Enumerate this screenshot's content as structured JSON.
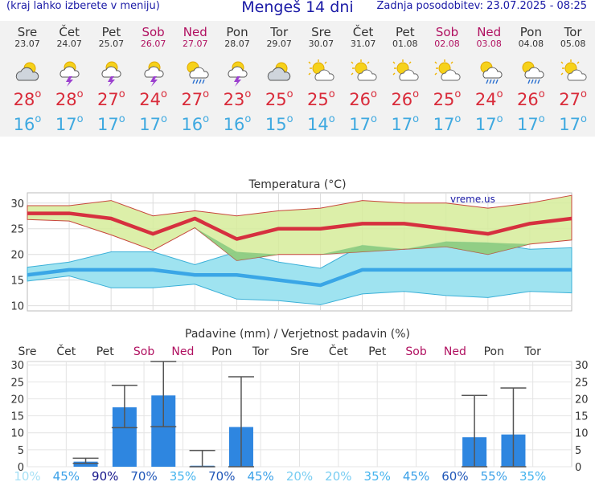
{
  "header": {
    "left_note": "(kraj lahko izberete v meniju)",
    "title": "Mengeš 14 dni",
    "updated": "Zadnja posodobitev: 23.07.2025 - 08:25"
  },
  "days": [
    {
      "name": "Sre",
      "date": "23.07",
      "weekend": false,
      "icon": "partly-cloudy-icon",
      "max": "28",
      "min": "16"
    },
    {
      "name": "Čet",
      "date": "24.07",
      "weekend": false,
      "icon": "thunderstorm-sun-icon",
      "max": "28",
      "min": "17"
    },
    {
      "name": "Pet",
      "date": "25.07",
      "weekend": false,
      "icon": "thunderstorm-sun-icon",
      "max": "27",
      "min": "17"
    },
    {
      "name": "Sob",
      "date": "26.07",
      "weekend": true,
      "icon": "thunderstorm-sun-icon",
      "max": "24",
      "min": "17"
    },
    {
      "name": "Ned",
      "date": "27.07",
      "weekend": true,
      "icon": "rain-sun-icon",
      "max": "27",
      "min": "16"
    },
    {
      "name": "Pon",
      "date": "28.07",
      "weekend": false,
      "icon": "thunderstorm-sun-icon",
      "max": "23",
      "min": "16"
    },
    {
      "name": "Tor",
      "date": "29.07",
      "weekend": false,
      "icon": "partly-cloudy-icon",
      "max": "25",
      "min": "15"
    },
    {
      "name": "Sre",
      "date": "30.07",
      "weekend": false,
      "icon": "mostly-sunny-icon",
      "max": "25",
      "min": "14"
    },
    {
      "name": "Čet",
      "date": "31.07",
      "weekend": false,
      "icon": "mostly-sunny-icon",
      "max": "26",
      "min": "17"
    },
    {
      "name": "Pet",
      "date": "01.08",
      "weekend": false,
      "icon": "mostly-sunny-icon",
      "max": "26",
      "min": "17"
    },
    {
      "name": "Sob",
      "date": "02.08",
      "weekend": true,
      "icon": "mostly-sunny-icon",
      "max": "25",
      "min": "17"
    },
    {
      "name": "Ned",
      "date": "03.08",
      "weekend": true,
      "icon": "rain-sun-icon",
      "max": "24",
      "min": "17"
    },
    {
      "name": "Pon",
      "date": "04.08",
      "weekend": false,
      "icon": "rain-sun-icon",
      "max": "26",
      "min": "17"
    },
    {
      "name": "Tor",
      "date": "05.08",
      "weekend": false,
      "icon": "mostly-sunny-icon",
      "max": "27",
      "min": "17"
    }
  ],
  "colors": {
    "max_line": "#d6303f",
    "min_line": "#3aa6e6",
    "max_band": "#d6ec9a",
    "min_band": "#9fe3f0",
    "overlap_band": "#7cc47a",
    "bar": "#2e86e0",
    "whisker": "#555555",
    "title_blue": "#1a1aa6",
    "weekend": "#b01060"
  },
  "chart_data": [
    {
      "type": "line",
      "title": "Temperatura (°C)",
      "watermark": "vreme.us",
      "ylim": [
        9,
        32
      ],
      "yticks": [
        "10",
        "15",
        "20",
        "25",
        "30"
      ],
      "categories": [
        "23.07",
        "24.07",
        "25.07",
        "26.07",
        "27.07",
        "28.07",
        "29.07",
        "30.07",
        "31.07",
        "01.08",
        "02.08",
        "03.08",
        "04.08",
        "05.08"
      ],
      "series": [
        {
          "name": "max",
          "values": [
            28,
            28,
            27,
            24,
            27,
            23,
            25,
            25,
            26,
            26,
            25,
            24,
            26,
            27
          ]
        },
        {
          "name": "max_upper",
          "values": [
            29.5,
            29.5,
            30.5,
            27.5,
            28.5,
            27.5,
            28.5,
            29,
            30.5,
            30,
            30,
            29,
            30,
            31.5
          ]
        },
        {
          "name": "max_lower",
          "values": [
            26.8,
            26.5,
            23.8,
            20.8,
            25.2,
            18.8,
            20,
            20,
            20.5,
            21,
            21.5,
            20,
            22,
            22.8
          ]
        },
        {
          "name": "min",
          "values": [
            16,
            17,
            17,
            17,
            16,
            16,
            15,
            14,
            17,
            17,
            17,
            17,
            17,
            17
          ]
        },
        {
          "name": "min_upper",
          "values": [
            17.5,
            18.5,
            20.5,
            20.5,
            18,
            20.5,
            18.5,
            17.3,
            21.8,
            21,
            22.5,
            22.3,
            21,
            21.3
          ]
        },
        {
          "name": "min_lower",
          "values": [
            14.8,
            15.8,
            13.5,
            13.5,
            14.2,
            11.3,
            11,
            10.2,
            12.3,
            12.8,
            12,
            11.6,
            12.8,
            12.5
          ]
        }
      ]
    },
    {
      "type": "bar",
      "title": "Padavine (mm) / Verjetnost padavin (%)",
      "ylim": [
        0,
        31
      ],
      "yticks": [
        "0",
        "5",
        "10",
        "15",
        "20",
        "25",
        "30"
      ],
      "categories": [
        "Sre",
        "Čet",
        "Pet",
        "Sob",
        "Ned",
        "Pon",
        "Tor",
        "Sre",
        "Čet",
        "Pet",
        "Sob",
        "Ned",
        "Pon",
        "Tor"
      ],
      "values": [
        0,
        1.5,
        17.5,
        21,
        0.3,
        11.7,
        0,
        0,
        0,
        0,
        0,
        8.7,
        9.5,
        0
      ],
      "whisker_low": [
        0,
        1,
        11.5,
        11.8,
        0,
        0,
        0,
        0,
        0,
        0,
        0,
        0,
        0,
        0
      ],
      "whisker_high": [
        0,
        2.5,
        24,
        31,
        4.8,
        26.5,
        0,
        0,
        0,
        0,
        0,
        21,
        23.2,
        0
      ],
      "probability": [
        "10%",
        "45%",
        "90%",
        "70%",
        "35%",
        "70%",
        "45%",
        "20%",
        "20%",
        "35%",
        "45%",
        "60%",
        "55%",
        "35%"
      ],
      "probability_values": [
        10,
        45,
        90,
        70,
        35,
        70,
        45,
        20,
        20,
        35,
        45,
        60,
        55,
        35
      ]
    }
  ]
}
